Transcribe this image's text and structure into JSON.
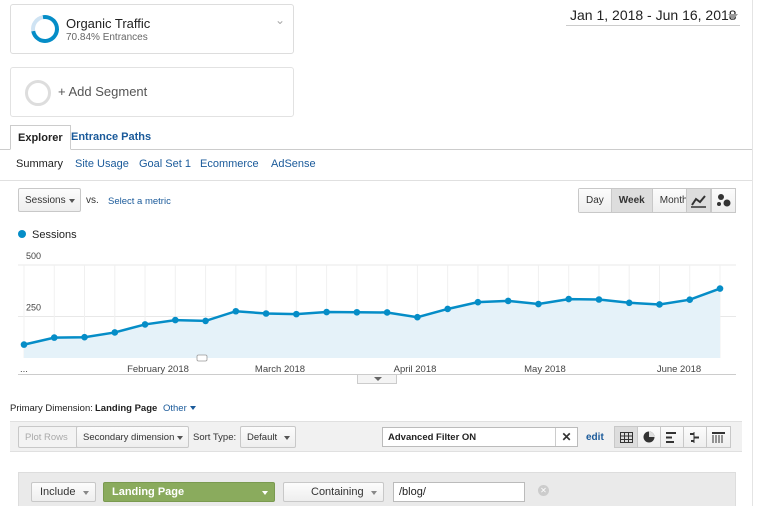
{
  "segments": [
    {
      "title": "Organic Traffic",
      "subtitle": "70.84% Entrances"
    },
    {
      "title": "+ Add Segment"
    }
  ],
  "date_range": "Jan 1, 2018 - Jun 16, 2018",
  "tabs": [
    "Explorer",
    "Entrance Paths"
  ],
  "subtabs": [
    "Summary",
    "Site Usage",
    "Goal Set 1",
    "Ecommerce",
    "AdSense"
  ],
  "metric": {
    "selected": "Sessions",
    "vs": "vs.",
    "select_metric": "Select a metric"
  },
  "granularity": [
    "Day",
    "Week",
    "Month"
  ],
  "granularity_active": "Week",
  "icons": {
    "line_chart": "line-chart-icon",
    "motion_chart": "motion-chart-icon",
    "table_view": "table-view-icon",
    "pie_view": "pie-view-icon",
    "performance_view": "performance-view-icon",
    "comparison_view": "comparison-view-icon",
    "pivot_view": "pivot-view-icon"
  },
  "chart_data": {
    "type": "area",
    "series": [
      {
        "name": "Sessions",
        "color": "#058dc7",
        "values": [
          65,
          99,
          101,
          124,
          163,
          184,
          180,
          227,
          216,
          213,
          223,
          222,
          221,
          198,
          238,
          271,
          277,
          262,
          286,
          284,
          268,
          260,
          283,
          337
        ]
      }
    ],
    "y_ticks": [
      250,
      500
    ],
    "ylim": [
      0,
      500
    ],
    "x_tick_labels": [
      "...",
      "February 2018",
      "March 2018",
      "April 2018",
      "May 2018",
      "June 2018"
    ]
  },
  "primary_dimension": {
    "label": "Primary Dimension:",
    "value": "Landing Page",
    "other": "Other"
  },
  "toolbar": {
    "plot_rows": "Plot Rows",
    "secondary_dimension": "Secondary dimension",
    "sort_type_label": "Sort Type:",
    "sort_value": "Default",
    "filter_value": "Advanced Filter ON",
    "clear": "✕",
    "edit": "edit"
  },
  "advanced_filter": {
    "include": "Include",
    "dimension": "Landing Page",
    "match_type": "Containing",
    "value": "/blog/"
  }
}
